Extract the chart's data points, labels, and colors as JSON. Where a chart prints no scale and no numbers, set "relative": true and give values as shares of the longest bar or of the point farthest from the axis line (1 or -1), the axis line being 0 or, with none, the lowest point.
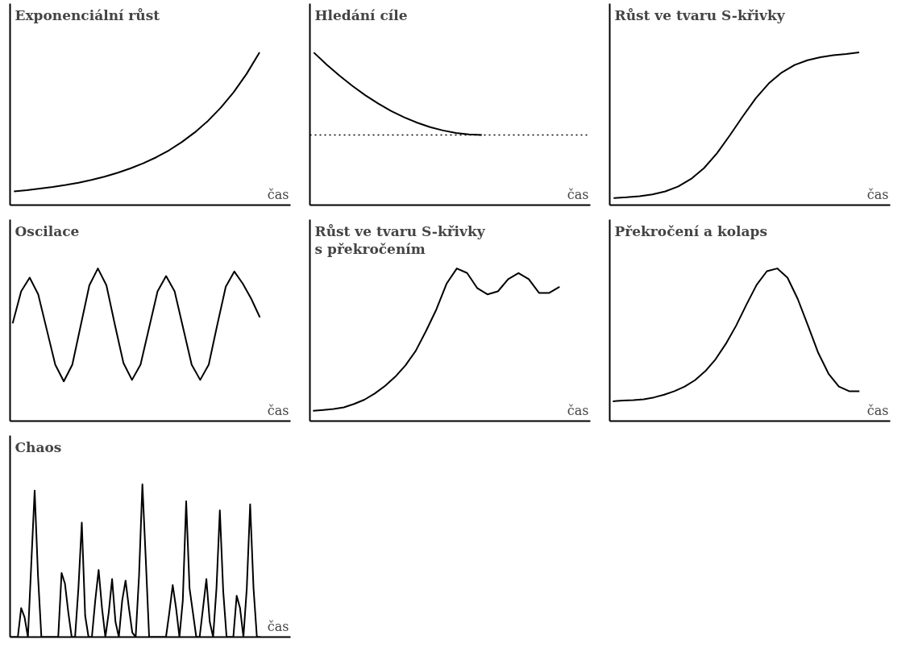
{
  "chart_data": [
    {
      "type": "line",
      "title": "Exponenciální růst",
      "xlabel": "čas",
      "relative": true,
      "color": "#000000",
      "categories": [
        null,
        null,
        null,
        null,
        null,
        null,
        null,
        null,
        null,
        null,
        null,
        null,
        null,
        null,
        null,
        null,
        null,
        null,
        null,
        null
      ],
      "values": [
        0.09,
        0.098,
        0.108,
        0.119,
        0.132,
        0.147,
        0.165,
        0.186,
        0.211,
        0.24,
        0.274,
        0.313,
        0.359,
        0.414,
        0.477,
        0.551,
        0.638,
        0.74,
        0.86,
        1.0
      ]
    },
    {
      "type": "line",
      "title": "Hledání cíle",
      "xlabel": "čas",
      "relative": true,
      "color": "#000000",
      "categories": [
        null,
        null,
        null,
        null,
        null,
        null,
        null,
        null,
        null,
        null,
        null,
        null,
        null,
        null,
        null,
        null,
        null,
        null,
        null,
        null
      ],
      "values": [
        1.0,
        0.92,
        0.847,
        0.78,
        0.719,
        0.665,
        0.616,
        0.575,
        0.54,
        0.511,
        0.489,
        0.473,
        0.463,
        0.46,
        null,
        null,
        null,
        null,
        null,
        null
      ],
      "ref_lines": [
        {
          "axis": "y",
          "value": 0.46,
          "label": null,
          "line_style": "dotted",
          "color": "#000000"
        }
      ]
    },
    {
      "type": "line",
      "title": "Růst ve tvaru S-křivky",
      "xlabel": "čas",
      "relative": true,
      "color": "#000000",
      "categories": [
        null,
        null,
        null,
        null,
        null,
        null,
        null,
        null,
        null,
        null,
        null,
        null,
        null,
        null,
        null,
        null,
        null,
        null,
        null,
        null
      ],
      "values": [
        0.046,
        0.051,
        0.058,
        0.07,
        0.09,
        0.122,
        0.172,
        0.243,
        0.34,
        0.458,
        0.582,
        0.7,
        0.797,
        0.868,
        0.918,
        0.949,
        0.969,
        0.982,
        0.99,
        1.0
      ]
    },
    {
      "type": "line",
      "title": "Oscilace",
      "xlabel": "čas",
      "relative": true,
      "color": "#000000",
      "categories": [
        null,
        null,
        null,
        null,
        null,
        null,
        null,
        null,
        null,
        null,
        null,
        null,
        null,
        null,
        null,
        null,
        null,
        null,
        null,
        null,
        null,
        null,
        null,
        null,
        null,
        null,
        null,
        null,
        null,
        null
      ],
      "values": [
        0.64,
        0.85,
        0.94,
        0.83,
        0.6,
        0.37,
        0.26,
        0.37,
        0.63,
        0.89,
        1.0,
        0.89,
        0.63,
        0.38,
        0.27,
        0.37,
        0.61,
        0.85,
        0.95,
        0.85,
        0.61,
        0.37,
        0.27,
        0.37,
        0.63,
        0.88,
        0.98,
        0.9,
        0.8,
        0.68
      ]
    },
    {
      "type": "line",
      "title": "Růst ve tvaru S-křivky\ns překročením",
      "xlabel": "čas",
      "relative": true,
      "color": "#000000",
      "categories": [
        null,
        null,
        null,
        null,
        null,
        null,
        null,
        null,
        null,
        null,
        null,
        null,
        null,
        null,
        null,
        null,
        null,
        null,
        null,
        null,
        null,
        null,
        null,
        null,
        null
      ],
      "values": [
        0.067,
        0.073,
        0.079,
        0.09,
        0.112,
        0.14,
        0.18,
        0.23,
        0.29,
        0.365,
        0.46,
        0.59,
        0.73,
        0.9,
        1.0,
        0.97,
        0.87,
        0.83,
        0.85,
        0.93,
        0.97,
        0.93,
        0.84,
        0.84,
        0.88
      ]
    },
    {
      "type": "line",
      "title": "Překročení a kolaps",
      "xlabel": "čas",
      "relative": true,
      "color": "#000000",
      "categories": [
        null,
        null,
        null,
        null,
        null,
        null,
        null,
        null,
        null,
        null,
        null,
        null,
        null,
        null,
        null,
        null,
        null,
        null,
        null,
        null,
        null,
        null,
        null,
        null,
        null
      ],
      "values": [
        0.13,
        0.134,
        0.137,
        0.143,
        0.155,
        0.173,
        0.196,
        0.226,
        0.268,
        0.327,
        0.405,
        0.506,
        0.625,
        0.762,
        0.893,
        0.982,
        1.0,
        0.94,
        0.8,
        0.625,
        0.446,
        0.31,
        0.226,
        0.196,
        0.196
      ]
    },
    {
      "type": "line",
      "title": "Chaos",
      "xlabel": "čas",
      "relative": true,
      "color": "#000000",
      "categories": [
        null,
        null,
        null,
        null,
        null,
        null,
        null,
        null,
        null,
        null,
        null,
        null,
        null,
        null,
        null,
        null,
        null,
        null,
        null,
        null,
        null,
        null,
        null,
        null,
        null,
        null,
        null,
        null,
        null,
        null,
        null,
        null,
        null,
        null,
        null,
        null,
        null,
        null,
        null,
        null,
        null,
        null,
        null,
        null,
        null,
        null,
        null,
        null,
        null,
        null,
        null,
        null,
        null,
        null,
        null,
        null,
        null,
        null,
        null,
        null,
        null,
        null,
        null,
        null,
        null,
        null,
        null,
        null,
        null,
        null,
        null,
        null,
        null,
        null,
        null
      ],
      "values": [
        0,
        0,
        0,
        0.19,
        0.13,
        0,
        0.48,
        0.96,
        0.4,
        0,
        0,
        0,
        0,
        0,
        0,
        0.42,
        0.35,
        0.16,
        0,
        0,
        0.32,
        0.75,
        0.14,
        0,
        0,
        0.24,
        0.44,
        0.19,
        0,
        0.16,
        0.38,
        0.1,
        0,
        0.24,
        0.37,
        0.19,
        0.03,
        0,
        0.4,
        1.0,
        0.51,
        0,
        0,
        0,
        0,
        0,
        0,
        0.16,
        0.34,
        0.19,
        0,
        0.24,
        0.89,
        0.32,
        0.16,
        0,
        0,
        0.19,
        0.38,
        0.1,
        0,
        0.32,
        0.83,
        0.3,
        0,
        0,
        0,
        0.27,
        0.19,
        0,
        0.32,
        0.87,
        0.32,
        0,
        0
      ]
    }
  ]
}
